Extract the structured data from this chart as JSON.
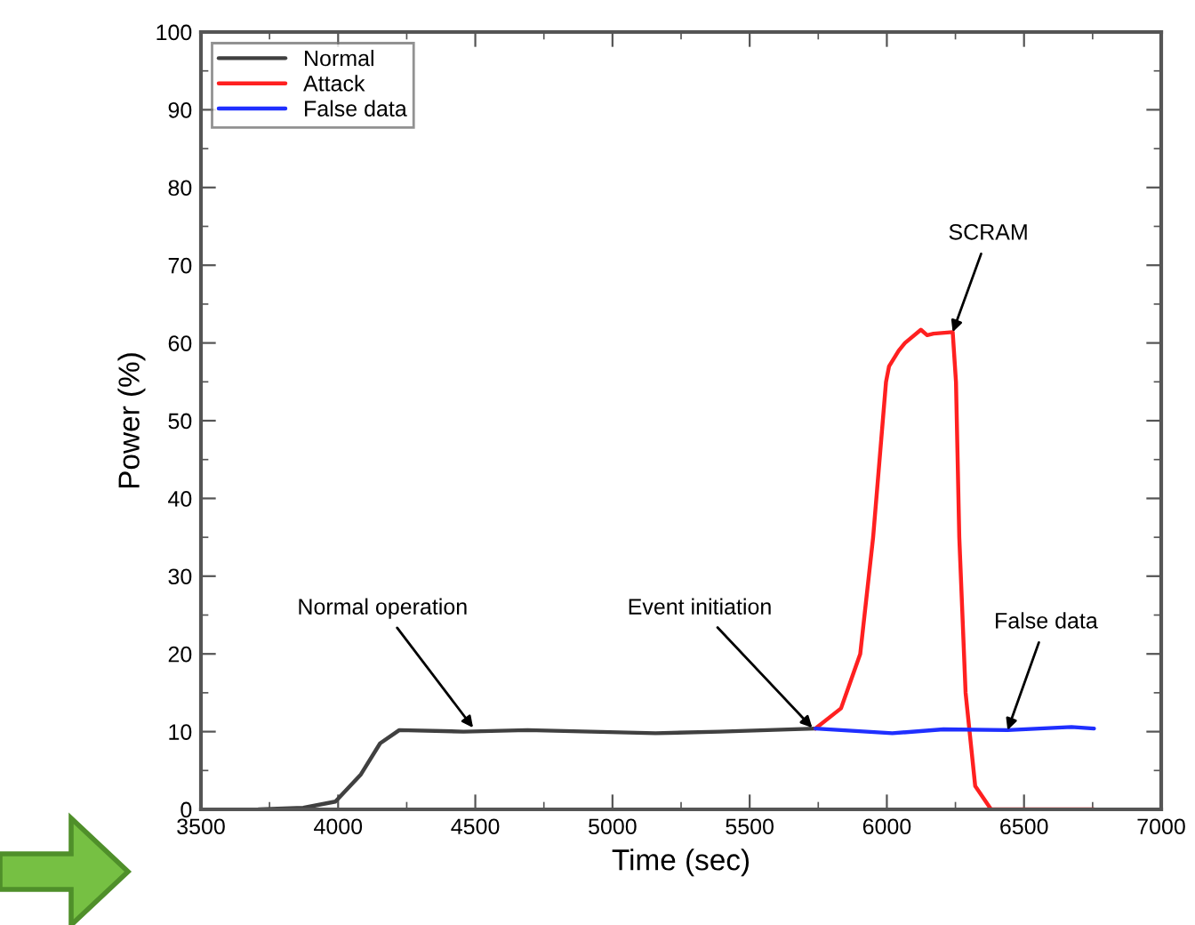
{
  "chart_data": {
    "type": "line",
    "xlabel": "Time (sec)",
    "ylabel": "Power (%)",
    "xlim": [
      3500,
      7000
    ],
    "xticks": [
      3500,
      4000,
      4500,
      5000,
      5500,
      6000,
      6500,
      7000
    ],
    "ylim": [
      0,
      100
    ],
    "yticks": [
      0,
      10,
      20,
      30,
      40,
      50,
      60,
      70,
      80,
      90,
      100
    ],
    "grid": false,
    "legend": "top left",
    "marker": "none",
    "line_style": "solid",
    "series": [
      {
        "name": "Normal",
        "color": "#404040",
        "x": [
          3710,
          3873,
          3990,
          4083,
          4153,
          4223,
          4457,
          4690,
          4923,
          5157,
          5390,
          5740
        ],
        "values": [
          0,
          0.2,
          1,
          4.5,
          8.5,
          10.2,
          10,
          10.2,
          10,
          9.8,
          10,
          10.4
        ]
      },
      {
        "name": "Attack",
        "color": "#ff2020",
        "x": [
          5740,
          5833,
          5903,
          5950,
          5997,
          6008,
          6043,
          6066,
          6124,
          6147,
          6170,
          6240,
          6252,
          6264,
          6287,
          6322,
          6380,
          6755
        ],
        "values": [
          10.4,
          13,
          20,
          35,
          55,
          57,
          59,
          60,
          61.7,
          61,
          61.2,
          61.4,
          55,
          35,
          15,
          3,
          0,
          0
        ]
      },
      {
        "name": "False data",
        "color": "#1f2fff",
        "x": [
          5740,
          6020,
          6206,
          6440,
          6673,
          6755
        ],
        "values": [
          10.4,
          9.8,
          10.3,
          10.2,
          10.6,
          10.4
        ]
      }
    ],
    "annotations": [
      {
        "text": "Normal operation",
        "x": 4492,
        "y": 10.5
      },
      {
        "text": "Event initiation",
        "x": 5728,
        "y": 10.5
      },
      {
        "text": "SCRAM",
        "x": 6240,
        "y": 61.4
      },
      {
        "text": "False data",
        "x": 6440,
        "y": 10.2
      }
    ]
  }
}
